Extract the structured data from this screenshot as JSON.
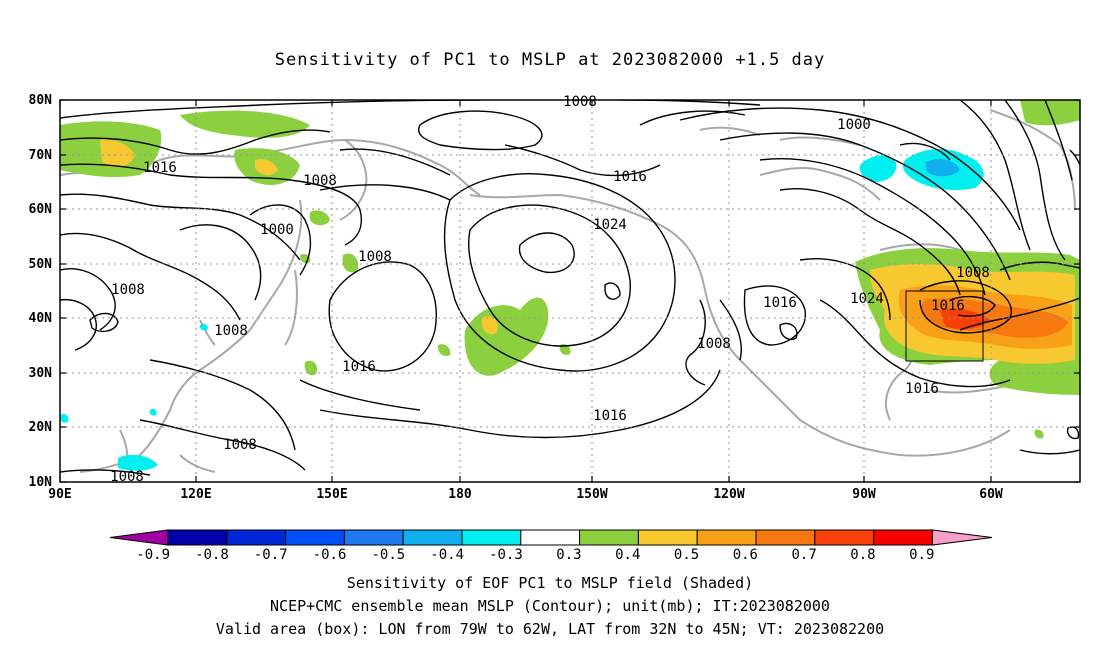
{
  "title": "Sensitivity of PC1 to MSLP at 2023082000 +1.5 day",
  "map": {
    "lat_labels": [
      "80N",
      "70N",
      "60N",
      "50N",
      "40N",
      "30N",
      "20N",
      "10N"
    ],
    "lon_labels": [
      "90E",
      "120E",
      "150E",
      "180",
      "150W",
      "120W",
      "90W",
      "60W"
    ],
    "contour_labels": [
      {
        "text": "1008",
        "name": "contour-label-1008-top"
      },
      {
        "text": "1000",
        "name": "contour-label-1000-ne"
      },
      {
        "text": "1016",
        "name": "contour-label-1016-nw"
      },
      {
        "text": "1008",
        "name": "contour-label-1008-nw"
      },
      {
        "text": "1016",
        "name": "contour-label-1016-north"
      },
      {
        "text": "1000",
        "name": "contour-label-1000-west"
      },
      {
        "text": "1024",
        "name": "contour-label-1024-high"
      },
      {
        "text": "1008",
        "name": "contour-label-1008-kamchatka"
      },
      {
        "text": "1008",
        "name": "contour-label-1008-siberia"
      },
      {
        "text": "1008",
        "name": "contour-label-1008-china"
      },
      {
        "text": "1016",
        "name": "contour-label-1016-west-pacific"
      },
      {
        "text": "1016",
        "name": "contour-label-1016-sw-ridge"
      },
      {
        "text": "1016",
        "name": "contour-label-1016-east-pacific"
      },
      {
        "text": "1008",
        "name": "contour-label-1008-california"
      },
      {
        "text": "1024",
        "name": "contour-label-1024-bermuda"
      },
      {
        "text": "1008",
        "name": "contour-label-1008-atlantic"
      },
      {
        "text": "1016",
        "name": "contour-label-1016-box"
      },
      {
        "text": "1016",
        "name": "contour-label-1016-gulf"
      },
      {
        "text": "1008",
        "name": "contour-label-1008-south-china"
      },
      {
        "text": "1008",
        "name": "contour-label-1008-sw-corner"
      }
    ],
    "valid_box": {
      "lon_from": "79W",
      "lon_to": "62W",
      "lat_from": "32N",
      "lat_to": "45N"
    }
  },
  "colorbar": {
    "ticks": [
      "-0.9",
      "-0.8",
      "-0.7",
      "-0.6",
      "-0.5",
      "-0.4",
      "-0.3",
      "0.3",
      "0.4",
      "0.5",
      "0.6",
      "0.7",
      "0.8",
      "0.9"
    ],
    "colors": [
      "#a0009f",
      "#0000a8",
      "#0028d8",
      "#0050f8",
      "#1e78f0",
      "#10b0f0",
      "#00f0f0",
      "#ffffff",
      "#8cd040",
      "#f8c830",
      "#f8a018",
      "#f87810",
      "#f84008",
      "#f80000",
      "#f8a0c8"
    ]
  },
  "caption": {
    "line1": "Sensitivity of EOF PC1 to MSLP field (Shaded)",
    "line2": "NCEP+CMC ensemble mean MSLP (Contour); unit(mb); IT:2023082000",
    "line3": "Valid area (box): LON from 79W to 62W, LAT from 32N to 45N; VT: 2023082200"
  }
}
